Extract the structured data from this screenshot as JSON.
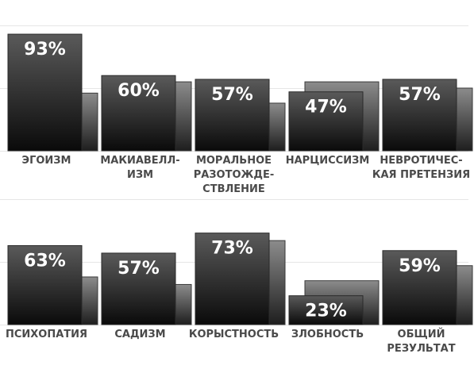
{
  "chart_data": [
    {
      "type": "bar",
      "categories": [
        [
          "ЭГОИЗМ"
        ],
        [
          "МАКИАВЕЛЛ-",
          "ИЗМ"
        ],
        [
          "МОРАЛЬНОЕ",
          "РАЗОТОЖДЕ-",
          "СТВЛЕНИЕ"
        ],
        [
          "НАРЦИССИЗМ"
        ],
        [
          "НЕВРОТИЧЕС-",
          "КАЯ ПРЕТЕНЗИЯ"
        ]
      ],
      "series": [
        {
          "values": [
            93,
            60,
            57,
            47,
            57
          ],
          "labels": [
            "93%",
            "60%",
            "57%",
            "47%",
            "57%"
          ]
        },
        {
          "values": [
            46,
            55,
            38,
            55,
            50
          ]
        }
      ],
      "ylim": [
        0,
        100
      ],
      "grid": true
    },
    {
      "type": "bar",
      "categories": [
        [
          "ПСИХОПАТИЯ"
        ],
        [
          "САДИЗМ"
        ],
        [
          "КОРЫСТНОСТЬ"
        ],
        [
          "ЗЛОБНОСТЬ"
        ],
        [
          "ОБЩИЙ",
          "РЕЗУЛЬТАТ"
        ]
      ],
      "series": [
        {
          "values": [
            63,
            57,
            73,
            23,
            59
          ],
          "labels": [
            "63%",
            "57%",
            "73%",
            "23%",
            "59%"
          ]
        },
        {
          "values": [
            38,
            32,
            67,
            35,
            47
          ]
        }
      ],
      "ylim": [
        0,
        100
      ],
      "grid": true
    }
  ],
  "colors": {
    "front_top": "#5a5a5a",
    "front_bottom": "#0a0a0a",
    "back_top": "#8c8c8c",
    "back_bottom": "#1e1e1e",
    "grid": "#e6e6e6",
    "label": "#4a4a4a"
  }
}
